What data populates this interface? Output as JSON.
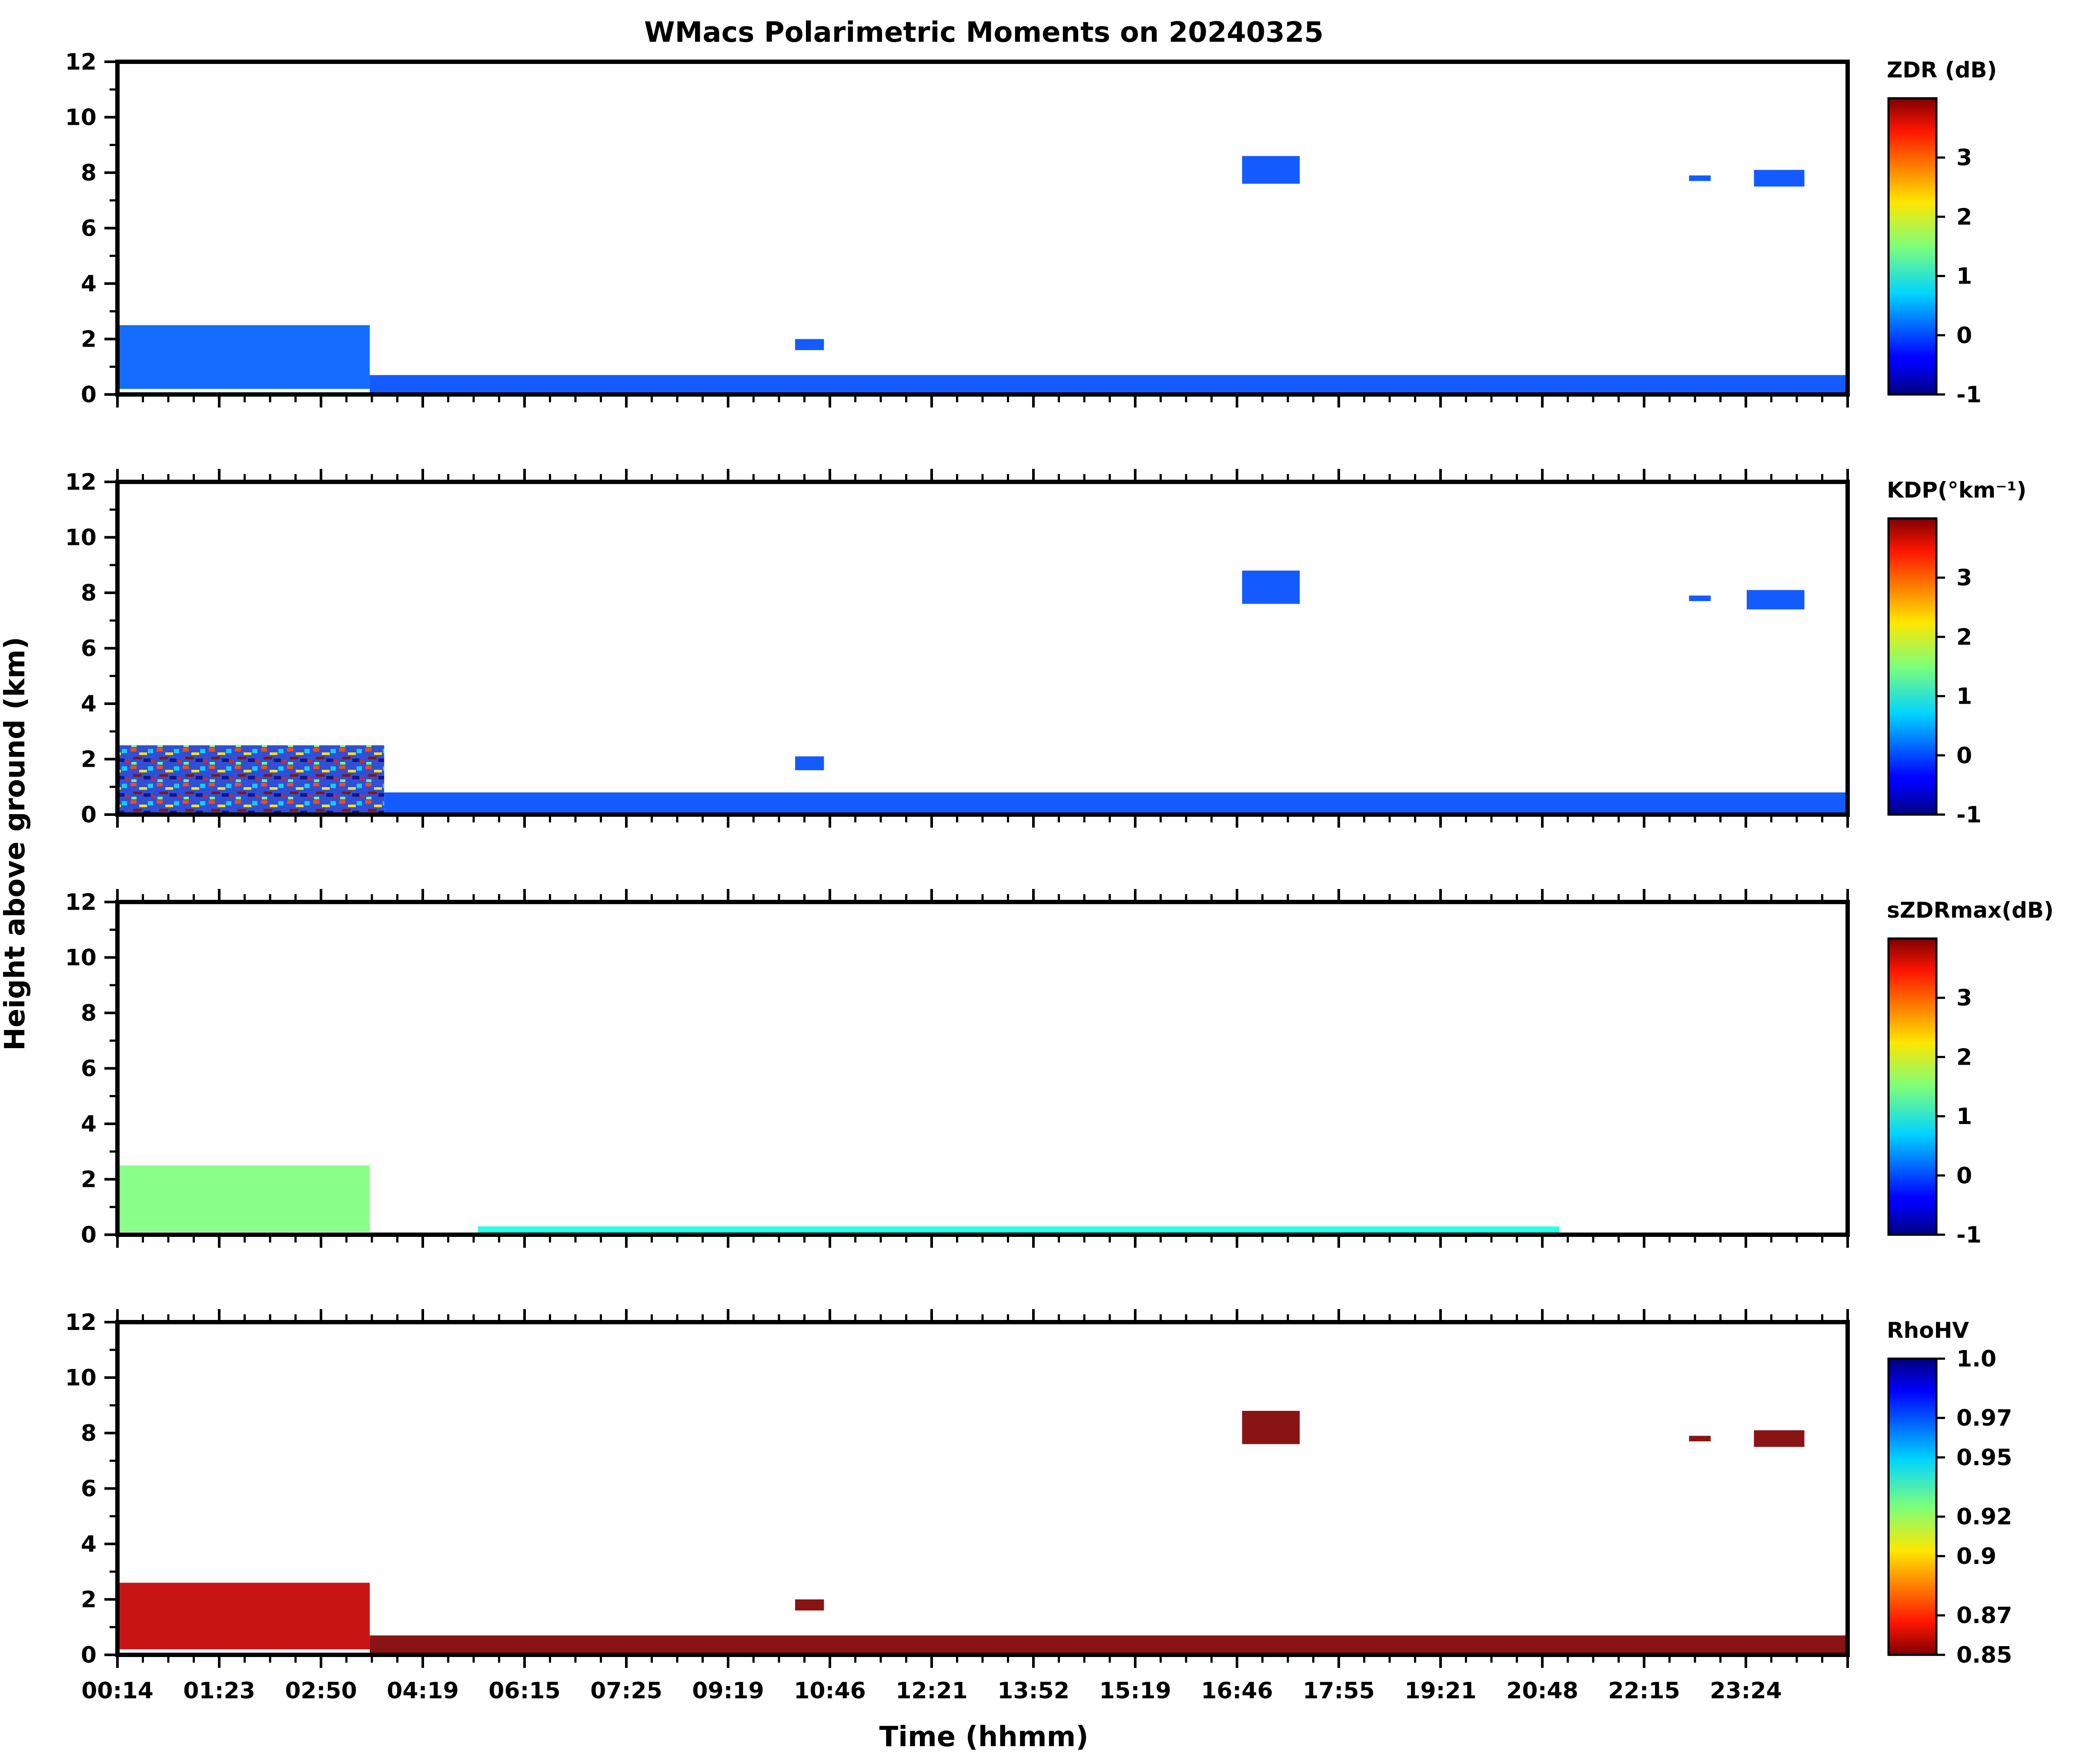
{
  "title": "WMacs Polarimetric Moments on 20240325",
  "ylabel": "Height above ground (km)",
  "xlabel": "Time (hhmm)",
  "colors": {
    "background": "#ffffff",
    "axis": "#000000",
    "jet_low": "#00007f",
    "jet_high": "#7f0000"
  },
  "chart_data": [
    {
      "type": "heatmap",
      "name": "ZDR",
      "colorbar_label": "ZDR (dB)",
      "colorbar_ticks": [
        "-1",
        "0",
        "1",
        "2",
        "3"
      ],
      "clim": [
        -1,
        4
      ],
      "colormap": "jet",
      "ylim": [
        0,
        12
      ],
      "yticks": [
        "0",
        "2",
        "4",
        "6",
        "8",
        "10",
        "12"
      ],
      "xticks": [
        "00:14",
        "01:23",
        "02:50",
        "04:19",
        "06:15",
        "07:25",
        "09:19",
        "10:46",
        "12:21",
        "13:52",
        "15:19",
        "16:46",
        "17:55",
        "19:21",
        "20:48",
        "22:15",
        "23:24"
      ],
      "features": [
        {
          "desc": "boundary layer precip",
          "t0": 0.0,
          "t1": 3.5,
          "h0": 0.2,
          "h1": 2.5,
          "value": 0.1
        },
        {
          "desc": "near-surface echoes",
          "t0": 3.5,
          "t1": 24.0,
          "h0": 0.0,
          "h1": 0.7,
          "value": 0.0
        },
        {
          "desc": "cloud 09:30",
          "t0": 9.4,
          "t1": 9.8,
          "h0": 1.6,
          "h1": 2.0,
          "value": 0.0
        },
        {
          "desc": "ice cloud 16:00",
          "t0": 15.6,
          "t1": 16.4,
          "h0": 7.6,
          "h1": 8.6,
          "value": 0.0
        },
        {
          "desc": "ice cloud 22:00",
          "t0": 21.8,
          "t1": 22.1,
          "h0": 7.7,
          "h1": 7.9,
          "value": 0.0
        },
        {
          "desc": "ice cloud 23:00",
          "t0": 22.7,
          "t1": 23.4,
          "h0": 7.5,
          "h1": 8.1,
          "value": 0.0
        }
      ]
    },
    {
      "type": "heatmap",
      "name": "KDP",
      "colorbar_label": "KDP(°km⁻¹)",
      "colorbar_ticks": [
        "-1",
        "0",
        "1",
        "2",
        "3"
      ],
      "clim": [
        -1,
        4
      ],
      "colormap": "jet",
      "ylim": [
        0,
        12
      ],
      "yticks": [
        "0",
        "2",
        "4",
        "6",
        "8",
        "10",
        "12"
      ],
      "xticks": [
        "00:14",
        "01:23",
        "02:50",
        "04:19",
        "06:15",
        "07:25",
        "09:19",
        "10:46",
        "12:21",
        "13:52",
        "15:19",
        "16:46",
        "17:55",
        "19:21",
        "20:48",
        "22:15",
        "23:24"
      ],
      "features": [
        {
          "desc": "boundary layer precip (noisy)",
          "t0": 0.0,
          "t1": 3.7,
          "h0": 0.0,
          "h1": 2.5,
          "value": 1.5
        },
        {
          "desc": "near-surface echoes",
          "t0": 3.7,
          "t1": 24.0,
          "h0": 0.0,
          "h1": 0.8,
          "value": 0.0
        },
        {
          "desc": "cloud 09:30",
          "t0": 9.4,
          "t1": 9.8,
          "h0": 1.6,
          "h1": 2.1,
          "value": 0.0
        },
        {
          "desc": "ice cloud 16:00",
          "t0": 15.6,
          "t1": 16.4,
          "h0": 7.6,
          "h1": 8.8,
          "value": 0.0
        },
        {
          "desc": "ice cloud 22:00",
          "t0": 21.8,
          "t1": 22.1,
          "h0": 7.7,
          "h1": 7.9,
          "value": 0.0
        },
        {
          "desc": "ice cloud 23:00",
          "t0": 22.6,
          "t1": 23.4,
          "h0": 7.4,
          "h1": 8.1,
          "value": 0.0
        }
      ]
    },
    {
      "type": "heatmap",
      "name": "sZDRmax",
      "colorbar_label": "sZDRmax(dB)",
      "colorbar_ticks": [
        "-1",
        "0",
        "1",
        "2",
        "3"
      ],
      "clim": [
        -1,
        4
      ],
      "colormap": "jet",
      "ylim": [
        0,
        12
      ],
      "yticks": [
        "0",
        "2",
        "4",
        "6",
        "8",
        "10",
        "12"
      ],
      "xticks": [
        "00:14",
        "01:23",
        "02:50",
        "04:19",
        "06:15",
        "07:25",
        "09:19",
        "10:46",
        "12:21",
        "13:52",
        "15:19",
        "16:46",
        "17:55",
        "19:21",
        "20:48",
        "22:15",
        "23:24"
      ],
      "features": [
        {
          "desc": "boundary layer precip",
          "t0": 0.0,
          "t1": 3.5,
          "h0": 0.1,
          "h1": 2.5,
          "value": 1.5
        },
        {
          "desc": "near-surface speckle",
          "t0": 5.0,
          "t1": 20.0,
          "h0": 0.0,
          "h1": 0.3,
          "value": 1.0
        }
      ]
    },
    {
      "type": "heatmap",
      "name": "RhoHV",
      "colorbar_label": "RhoHV",
      "colorbar_ticks": [
        "0.85",
        "0.87",
        "0.9",
        "0.92",
        "0.95",
        "0.97",
        "1.0"
      ],
      "clim": [
        0.85,
        1.0
      ],
      "colormap": "jet_r",
      "ylim": [
        0,
        12
      ],
      "yticks": [
        "0",
        "2",
        "4",
        "6",
        "8",
        "10",
        "12"
      ],
      "xticks": [
        "00:14",
        "01:23",
        "02:50",
        "04:19",
        "06:15",
        "07:25",
        "09:19",
        "10:46",
        "12:21",
        "13:52",
        "15:19",
        "16:46",
        "17:55",
        "19:21",
        "20:48",
        "22:15",
        "23:24"
      ],
      "features": [
        {
          "desc": "boundary layer precip",
          "t0": 0.0,
          "t1": 3.5,
          "h0": 0.2,
          "h1": 2.6,
          "value": 0.86
        },
        {
          "desc": "near-surface echoes",
          "t0": 3.5,
          "t1": 24.0,
          "h0": 0.0,
          "h1": 0.7,
          "value": 0.85
        },
        {
          "desc": "cloud 09:30",
          "t0": 9.4,
          "t1": 9.8,
          "h0": 1.6,
          "h1": 2.0,
          "value": 0.85
        },
        {
          "desc": "ice cloud 16:00",
          "t0": 15.6,
          "t1": 16.4,
          "h0": 7.6,
          "h1": 8.8,
          "value": 0.85
        },
        {
          "desc": "ice cloud 22:00",
          "t0": 21.8,
          "t1": 22.1,
          "h0": 7.7,
          "h1": 7.9,
          "value": 0.85
        },
        {
          "desc": "ice cloud 23:00",
          "t0": 22.7,
          "t1": 23.4,
          "h0": 7.5,
          "h1": 8.1,
          "value": 0.85
        }
      ]
    }
  ]
}
